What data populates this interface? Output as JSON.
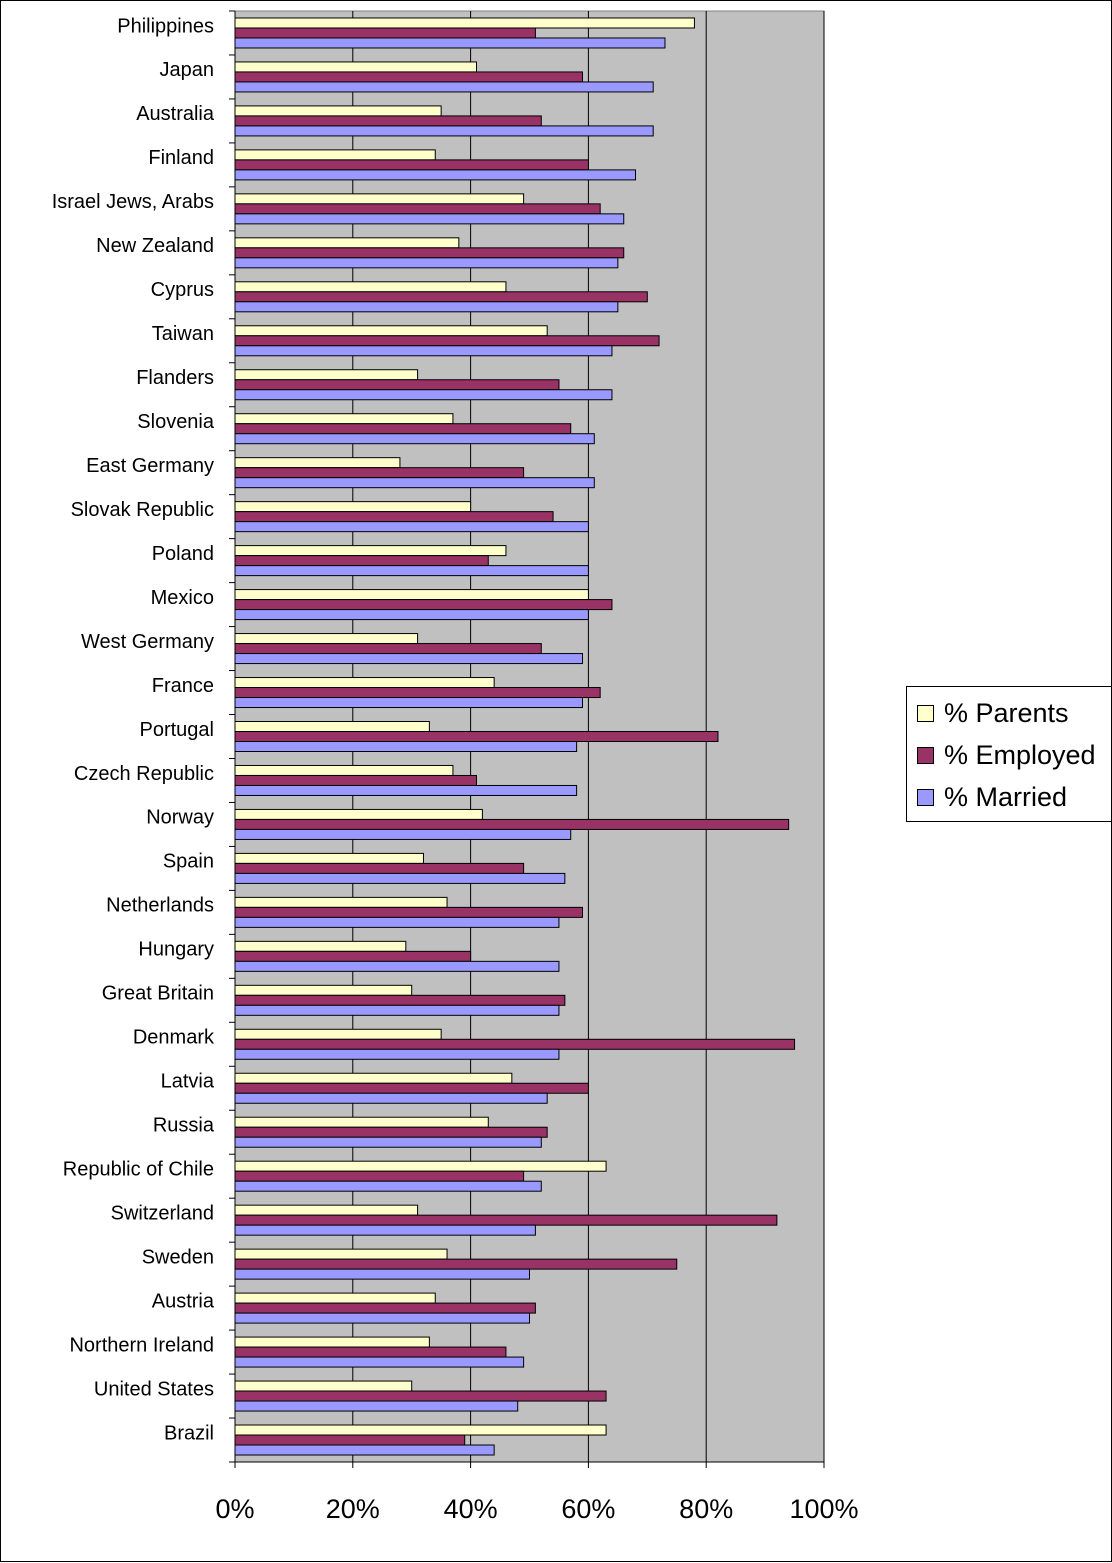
{
  "chart_data": {
    "type": "bar",
    "orientation": "horizontal",
    "categories": [
      "Philippines",
      "Japan",
      "Australia",
      "Finland",
      "Israel Jews, Arabs",
      "New Zealand",
      "Cyprus",
      "Taiwan",
      "Flanders",
      "Slovenia",
      "East Germany",
      "Slovak Republic",
      "Poland",
      "Mexico",
      "West Germany",
      "France",
      "Portugal",
      "Czech Republic",
      "Norway",
      "Spain",
      "Netherlands",
      "Hungary",
      "Great Britain",
      "Denmark",
      "Latvia",
      "Russia",
      "Republic of Chile",
      "Switzerland",
      "Sweden",
      "Austria",
      "Northern Ireland",
      "United States",
      "Brazil"
    ],
    "series": [
      {
        "name": "% Parents",
        "color": "#ffffcc",
        "values": [
          78,
          41,
          35,
          34,
          49,
          38,
          46,
          53,
          31,
          37,
          28,
          40,
          46,
          60,
          31,
          44,
          33,
          37,
          42,
          32,
          36,
          29,
          30,
          35,
          47,
          43,
          63,
          31,
          36,
          34,
          33,
          30,
          63
        ]
      },
      {
        "name": "% Employed",
        "color": "#993366",
        "values": [
          51,
          59,
          52,
          60,
          62,
          66,
          70,
          72,
          55,
          57,
          49,
          54,
          43,
          64,
          52,
          62,
          82,
          41,
          94,
          49,
          59,
          40,
          56,
          95,
          60,
          53,
          49,
          92,
          75,
          51,
          46,
          63,
          39
        ]
      },
      {
        "name": "% Married",
        "color": "#9999ff",
        "values": [
          73,
          71,
          71,
          68,
          66,
          65,
          65,
          64,
          64,
          61,
          61,
          60,
          60,
          60,
          59,
          59,
          58,
          58,
          57,
          56,
          55,
          55,
          55,
          55,
          53,
          52,
          52,
          51,
          50,
          50,
          49,
          48,
          44
        ]
      }
    ],
    "x_ticks": [
      "0%",
      "20%",
      "40%",
      "60%",
      "80%",
      "100%"
    ],
    "xlim": [
      0,
      100
    ],
    "grid": true,
    "plot_background": "#c0c0c0",
    "legend_position": "right",
    "title": "",
    "xlabel": "",
    "ylabel": ""
  }
}
